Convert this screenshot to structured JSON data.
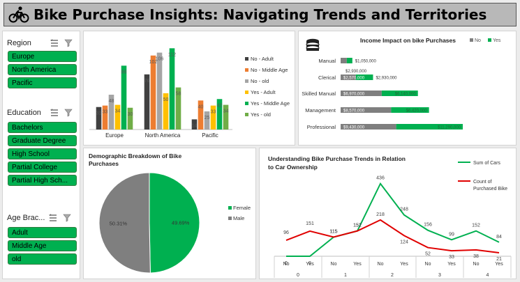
{
  "header": {
    "title": "Bike Purchase Insights: Navigating Trends and Territories"
  },
  "slicers": {
    "region": {
      "title": "Region",
      "items": [
        "Europe",
        "North America",
        "Pacific"
      ]
    },
    "education": {
      "title": "Education",
      "items": [
        "Bachelors",
        "Graduate Degree",
        "High School",
        "Partial College",
        "Partial High Sch..."
      ]
    },
    "age": {
      "title": "Age Brac...",
      "items": [
        "Adult",
        "Middle Age",
        "old"
      ]
    }
  },
  "colors": {
    "green": "#00b050",
    "gray": "#7f7f7f",
    "red": "#e00000",
    "orange": "#ed7d31",
    "yellow": "#ffc000",
    "dark": "#404040",
    "lightgray": "#a5a5a5",
    "lightgreen": "#70ad47"
  },
  "chart_data": [
    {
      "type": "bar",
      "title": "",
      "categories": [
        "Europe",
        "North America",
        "Pacific"
      ],
      "series": [
        {
          "name": "No - Adult",
          "color": "#404040",
          "values": [
            31,
            76,
            14
          ]
        },
        {
          "name": "No - Middle Age",
          "color": "#ed7d31",
          "values": [
            33,
            102,
            40
          ]
        },
        {
          "name": "No - old",
          "color": "#a5a5a5",
          "values": [
            48,
            106,
            25
          ]
        },
        {
          "name": "Yes - Adult",
          "color": "#ffc000",
          "values": [
            34,
            50,
            33
          ]
        },
        {
          "name": "Yes - Middle Age",
          "color": "#00b050",
          "values": [
            88,
            112,
            42
          ]
        },
        {
          "name": "Yes - old",
          "color": "#70ad47",
          "values": [
            30,
            58,
            34
          ]
        }
      ],
      "ylim": [
        0,
        120
      ],
      "legend": "right"
    },
    {
      "type": "bar",
      "orientation": "horizontal",
      "stacked": true,
      "title": "Income Impact on bike Purchases",
      "categories": [
        "Manual",
        "Clerical",
        "Skilled Manual",
        "Management",
        "Professional"
      ],
      "series": [
        {
          "name": "No",
          "color": "#7f7f7f",
          "values": [
            1050000,
            2570000,
            6970000,
            8570000,
            9430000
          ],
          "labels": [
            "$1,050,000",
            "$2,570,000",
            "$6,970,000",
            "$8,570,000",
            "$9,430,000"
          ]
        },
        {
          "name": "Yes",
          "color": "#00b050",
          "values": [
            940000,
            2930000,
            6140000,
            6420000,
            11290000
          ],
          "labels": [
            "$940,000",
            "$2,930,000",
            "$6,140,000",
            "$6,420,000",
            "$11,290,000"
          ]
        }
      ],
      "legend": "top-right"
    },
    {
      "type": "pie",
      "title": "Demographic Breakdown of Bike Purchases",
      "series": [
        {
          "name": "Female",
          "color": "#00b050",
          "value": 49.69,
          "label": "49.69%"
        },
        {
          "name": "Male",
          "color": "#7f7f7f",
          "value": 50.31,
          "label": "50.31%"
        }
      ],
      "legend": "right"
    },
    {
      "type": "line",
      "title": "Understanding Bike Purchase Trends in Relation to Car Ownership",
      "title_lines": [
        "Understanding Bike Purchase Trends in Relation",
        "to Car Ownership"
      ],
      "x_inner": [
        "No",
        "Yes",
        "No",
        "Yes",
        "No",
        "Yes",
        "No",
        "Yes",
        "No",
        "Yes"
      ],
      "x_groups": [
        "0",
        "1",
        "2",
        "3",
        "4"
      ],
      "series": [
        {
          "name": "Sum of Cars",
          "color": "#00b050",
          "values": [
            0,
            0,
            115,
            152,
            436,
            248,
            156,
            99,
            152,
            84
          ]
        },
        {
          "name": "Count of Purchased Bike",
          "legend_lines": [
            "Count of",
            "Purchased Bike"
          ],
          "color": "#e00000",
          "values": [
            96,
            151,
            115,
            152,
            218,
            124,
            52,
            33,
            38,
            21
          ]
        }
      ],
      "ylim": [
        0,
        460
      ],
      "legend": "right"
    }
  ]
}
